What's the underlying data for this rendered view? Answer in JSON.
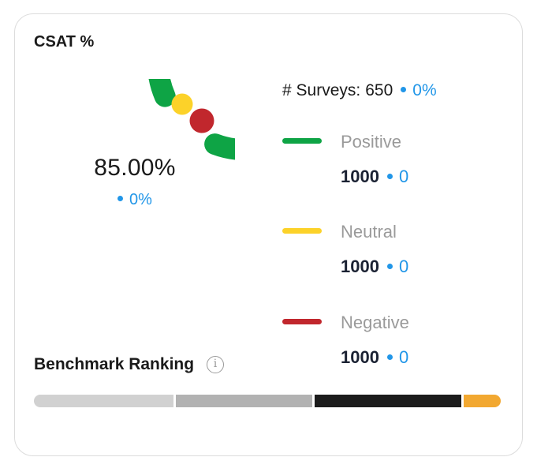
{
  "card": {
    "title": "CSAT %",
    "center_value": "85.00%",
    "center_delta": "0%",
    "colors": {
      "positive": "#0ea445",
      "neutral": "#fcd229",
      "negative": "#c1272d",
      "delta_blue": "#2196e8"
    }
  },
  "surveys": {
    "label": "# Surveys:",
    "count": "650",
    "delta": "0%"
  },
  "legend": [
    {
      "name": "Positive",
      "value": "1000",
      "delta": "0",
      "color": "#0ea445"
    },
    {
      "name": "Neutral",
      "value": "1000",
      "delta": "0",
      "color": "#fcd229"
    },
    {
      "name": "Negative",
      "value": "1000",
      "delta": "0",
      "color": "#c1272d"
    }
  ],
  "benchmark": {
    "title": "Benchmark Ranking",
    "info_icon": "info-icon",
    "segments": [
      {
        "color": "#d1d1d1"
      },
      {
        "color": "#b2b2b2"
      },
      {
        "color": "#1c1c1c"
      },
      {
        "color": "#f2a831"
      }
    ]
  }
}
